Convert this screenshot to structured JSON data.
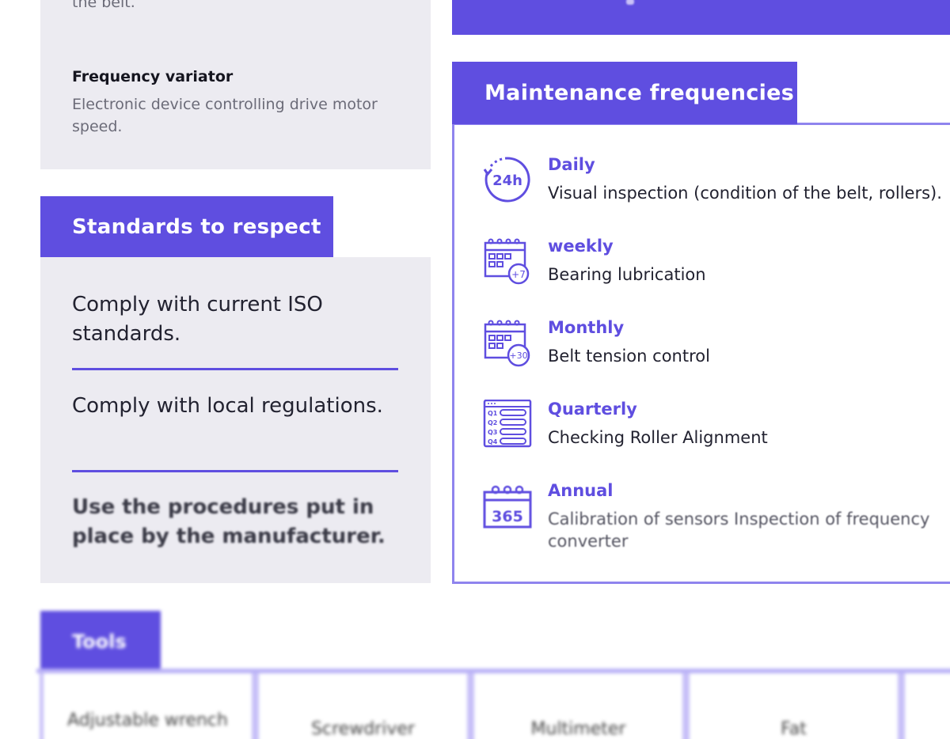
{
  "glossary": {
    "previous_text_tail": "the belt.",
    "term_title": "Frequency variator",
    "term_description": "Electronic device controlling drive motor speed."
  },
  "standards": {
    "header": "Standards to respect",
    "items": [
      "Comply with current ISO standards.",
      "Comply with local regulations.",
      "Use the procedures put in place by the manufacturer."
    ]
  },
  "maintenance": {
    "header": "Maintenance frequencies",
    "rows": [
      {
        "title": "Daily",
        "description": "Visual inspection (condition of the belt, rollers).",
        "icon": "clock-24h-icon",
        "icon_text": "24h"
      },
      {
        "title": "weekly",
        "description": "Bearing lubrication",
        "icon": "calendar-plus7-icon",
        "icon_text": "+7"
      },
      {
        "title": "Monthly",
        "description": "Belt tension control",
        "icon": "calendar-plus30-icon",
        "icon_text": "+30"
      },
      {
        "title": "Quarterly",
        "description": "Checking Roller Alignment",
        "icon": "quarterly-list-icon",
        "icon_text": [
          "Q1",
          "Q2",
          "Q3",
          "Q4"
        ]
      },
      {
        "title": "Annual",
        "description": "Calibration of sensors Inspection of frequency converter",
        "icon": "calendar-365-icon",
        "icon_text": "365"
      }
    ]
  },
  "tools": {
    "header": "Tools",
    "items": [
      "Adjustable wrench",
      "Screwdriver",
      "Multimeter",
      "Fat",
      ""
    ]
  },
  "colors": {
    "accent": "#5f4ee0",
    "panel_grey": "#ecebf1",
    "border": "#8f84ee"
  }
}
